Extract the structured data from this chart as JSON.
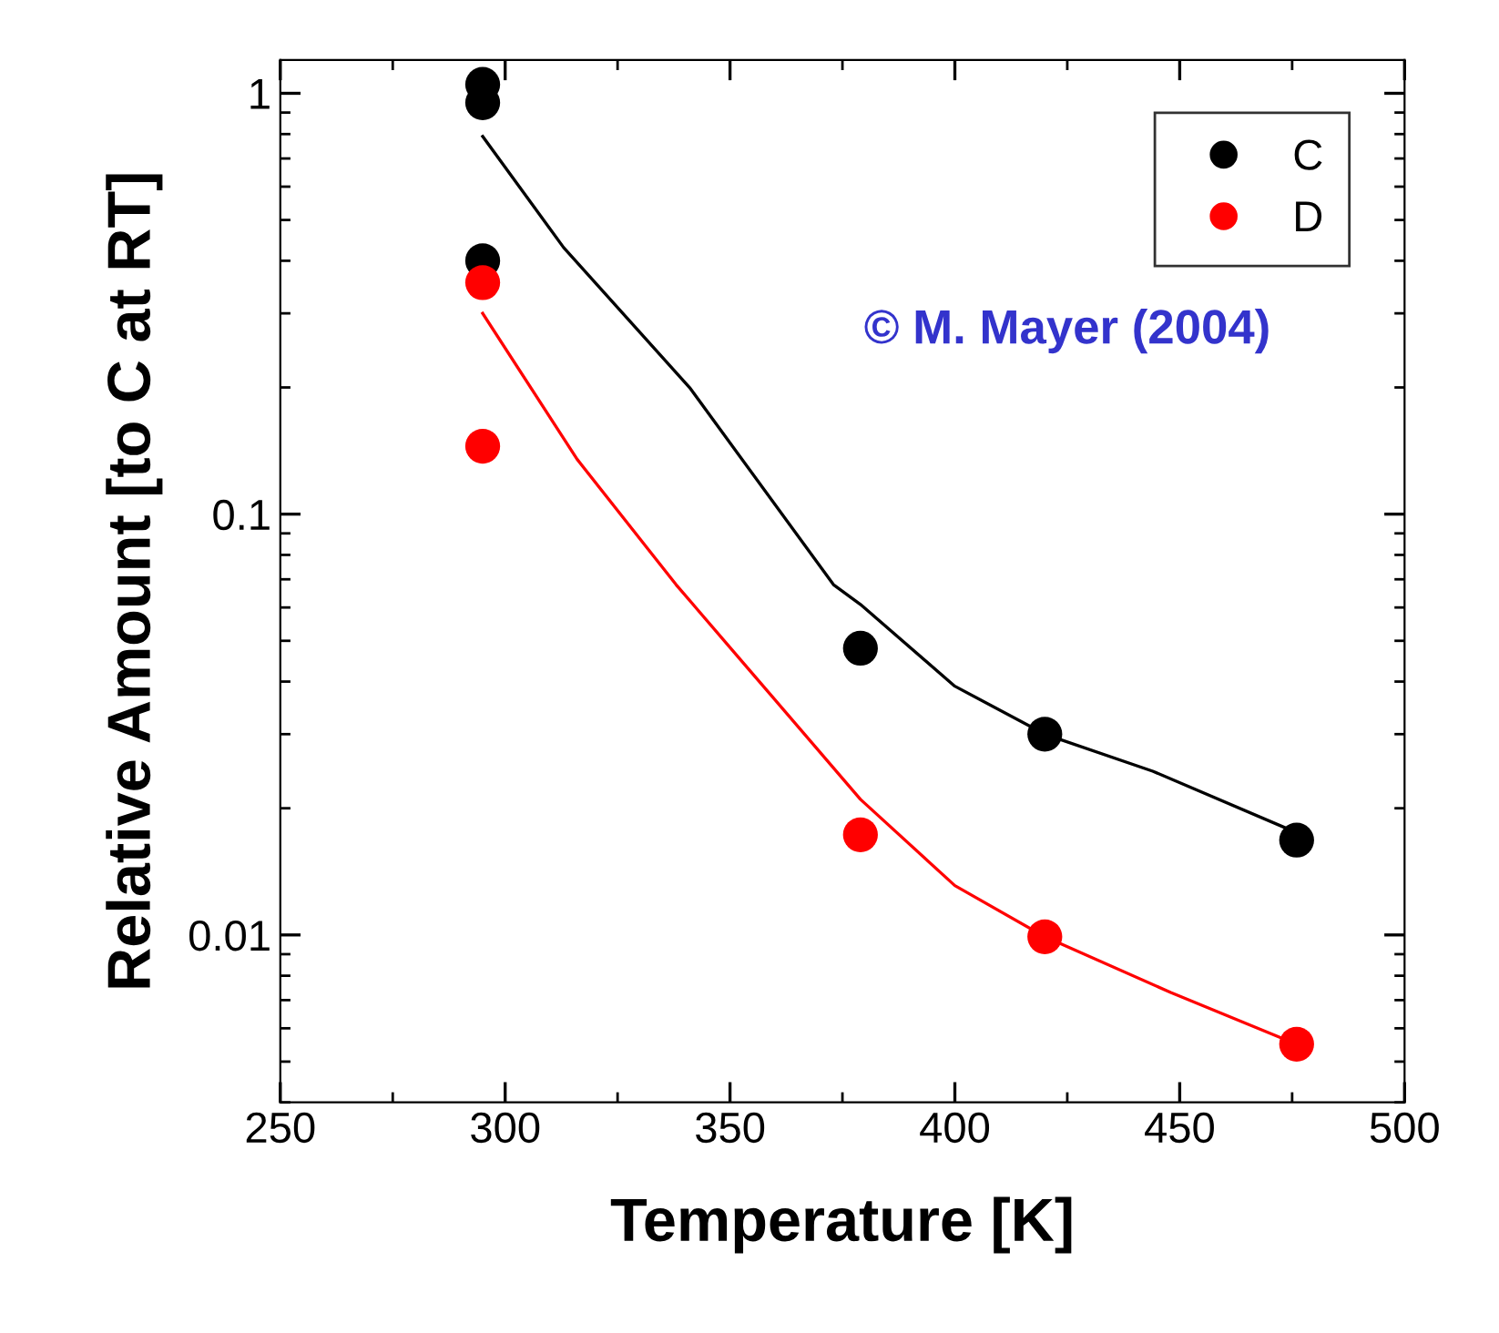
{
  "chart_data": {
    "type": "scatter",
    "xlabel": "Temperature [K]",
    "ylabel": "Relative Amount [to C at RT]",
    "log": "y",
    "xlim": [
      250,
      500
    ],
    "xticks": [
      250,
      300,
      350,
      400,
      450,
      500
    ],
    "ylim": [
      0.004,
      1.2
    ],
    "yticks": [
      {
        "value": 0.01,
        "label": "0.01"
      },
      {
        "value": 0.1,
        "label": "0.1"
      },
      {
        "value": 1,
        "label": "1"
      }
    ],
    "grid": false,
    "legend": "top right",
    "marker": "circle",
    "series": [
      {
        "name": "C",
        "color": "#000000",
        "x": [
          295,
          295,
          295,
          379,
          420,
          476
        ],
        "values": [
          1.05,
          0.95,
          0.4,
          0.048,
          0.03,
          0.0168
        ]
      },
      {
        "name": "D",
        "color": "#ff0000",
        "x": [
          295,
          295,
          379,
          420,
          476
        ],
        "values": [
          0.355,
          0.145,
          0.0173,
          0.0099,
          0.0055
        ]
      },
      {
        "type": "line",
        "color": "#000000",
        "marker": "none",
        "x": [
          295,
          313,
          341,
          373,
          379,
          400,
          420,
          444,
          476
        ],
        "values": [
          0.79,
          0.43,
          0.2,
          0.068,
          0.061,
          0.039,
          0.03,
          0.0245,
          0.0175
        ]
      },
      {
        "type": "line",
        "color": "#ff0000",
        "marker": "none",
        "x": [
          295,
          316,
          332,
          338,
          354,
          379,
          400,
          420,
          448,
          476
        ],
        "values": [
          0.3,
          0.135,
          0.082,
          0.068,
          0.043,
          0.021,
          0.0131,
          0.0099,
          0.0073,
          0.0055
        ]
      }
    ],
    "annotations": [
      "© M. Mayer (2004)"
    ]
  }
}
